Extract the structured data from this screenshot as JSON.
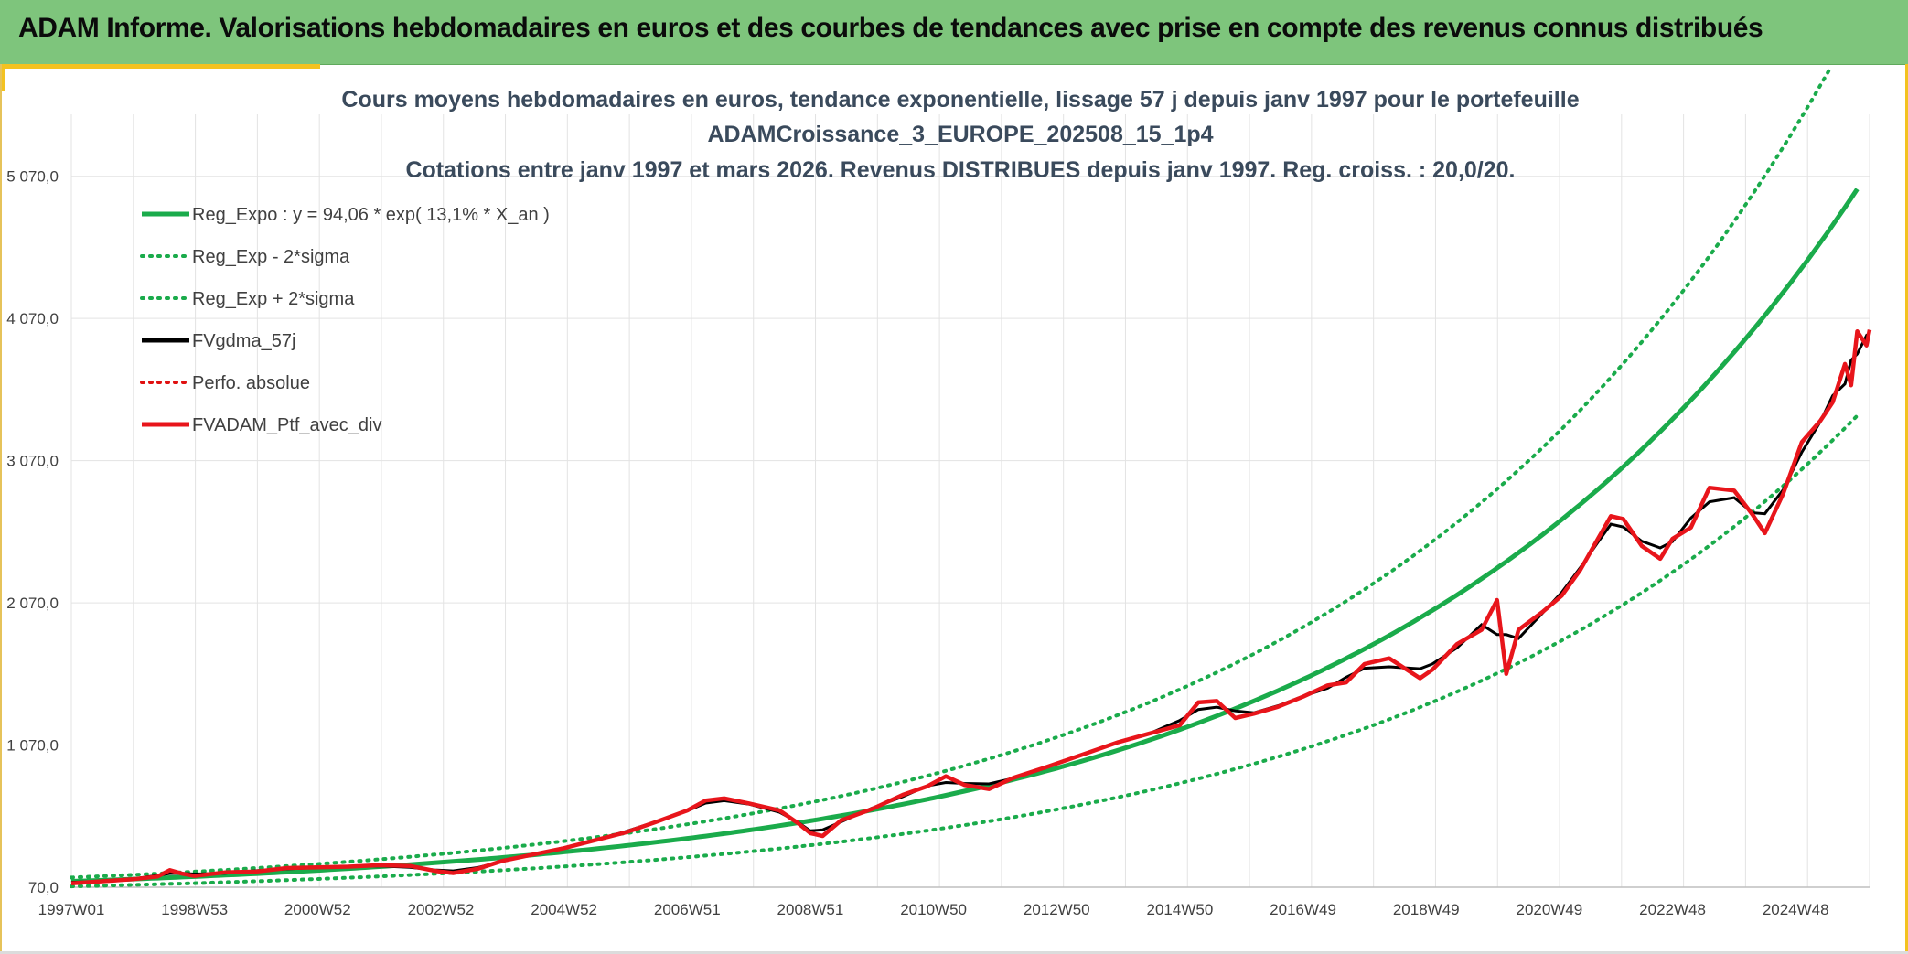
{
  "banner": {
    "title": "ADAM Informe. Valorisations hebdomadaires en euros et des courbes de tendances avec prise en compte des revenus connus distribués"
  },
  "colors": {
    "banner_bg": "#7ec57c",
    "accent": "#f3c220",
    "reg_green": "#1aab4b",
    "series_red": "#e8151b",
    "series_black": "#000000",
    "dotted_red": "#e01010",
    "grid": "#e3e3e3"
  },
  "chart_data": {
    "type": "line",
    "title_lines": [
      "Cours moyens hebdomadaires en euros, tendance exponentielle, lissage 57 j depuis janv 1997 pour le portefeuille",
      "ADAMCroissance_3_EUROPE_202508_15_1p4",
      "Cotations entre janv 1997 et mars 2026. Revenus DISTRIBUES depuis janv 1997. Reg. croiss. : 20,0/20."
    ],
    "x_tick_labels": [
      "1997W01",
      "1998W53",
      "2000W52",
      "2002W52",
      "2004W52",
      "2006W51",
      "2008W51",
      "2010W50",
      "2012W50",
      "2014W50",
      "2016W49",
      "2018W49",
      "2020W49",
      "2022W48",
      "2024W48"
    ],
    "y_tick_labels": [
      "70,0",
      "1 070,0",
      "2 070,0",
      "3 070,0",
      "4 070,0",
      "5 070,0"
    ],
    "y_ticks": [
      70,
      1070,
      2070,
      3070,
      4070,
      5070
    ],
    "x_range": [
      1997.0,
      2026.2
    ],
    "y_range": [
      70,
      5570
    ],
    "grid": true,
    "legend_placement": "top-left",
    "legend": [
      {
        "label": "Reg_Expo : y = 94,06 * exp( 13,1% *  X_an )",
        "style": "solid",
        "color": "#1aab4b"
      },
      {
        "label": "Reg_Exp - 2*sigma",
        "style": "dotted",
        "color": "#1aab4b"
      },
      {
        "label": "Reg_Exp + 2*sigma",
        "style": "dotted",
        "color": "#1aab4b"
      },
      {
        "label": "FVgdma_57j",
        "style": "solid",
        "color": "#000000"
      },
      {
        "label": "Perfo. absolue",
        "style": "dotted",
        "color": "#e01010"
      },
      {
        "label": "FVADAM_Ptf_avec_div",
        "style": "solid",
        "color": "#e8151b"
      }
    ],
    "regression": {
      "a": 94.06,
      "rate": 0.131,
      "lower_factor": 0.68,
      "upper_factor": 1.24
    },
    "series": [
      {
        "name": "FVADAM_Ptf_avec_div",
        "points": [
          [
            1997.0,
            97
          ],
          [
            1997.5,
            112
          ],
          [
            1998.0,
            126
          ],
          [
            1998.4,
            145
          ],
          [
            1998.6,
            190
          ],
          [
            1998.8,
            165
          ],
          [
            1999.0,
            150
          ],
          [
            1999.5,
            175
          ],
          [
            2000.0,
            180
          ],
          [
            2000.5,
            205
          ],
          [
            2001.0,
            210
          ],
          [
            2001.5,
            215
          ],
          [
            2002.0,
            225
          ],
          [
            2002.5,
            220
          ],
          [
            2002.9,
            185
          ],
          [
            2003.2,
            170
          ],
          [
            2003.6,
            200
          ],
          [
            2004.0,
            255
          ],
          [
            2004.5,
            300
          ],
          [
            2005.0,
            345
          ],
          [
            2005.5,
            400
          ],
          [
            2006.0,
            455
          ],
          [
            2006.5,
            530
          ],
          [
            2007.0,
            610
          ],
          [
            2007.3,
            680
          ],
          [
            2007.6,
            695
          ],
          [
            2008.0,
            660
          ],
          [
            2008.5,
            610
          ],
          [
            2008.8,
            520
          ],
          [
            2009.0,
            450
          ],
          [
            2009.2,
            430
          ],
          [
            2009.5,
            540
          ],
          [
            2010.0,
            620
          ],
          [
            2010.5,
            720
          ],
          [
            2010.9,
            780
          ],
          [
            2011.2,
            850
          ],
          [
            2011.5,
            790
          ],
          [
            2011.9,
            760
          ],
          [
            2012.3,
            840
          ],
          [
            2012.8,
            910
          ],
          [
            2013.2,
            970
          ],
          [
            2013.6,
            1030
          ],
          [
            2014.0,
            1090
          ],
          [
            2014.5,
            1150
          ],
          [
            2015.0,
            1210
          ],
          [
            2015.3,
            1370
          ],
          [
            2015.6,
            1380
          ],
          [
            2015.9,
            1260
          ],
          [
            2016.2,
            1290
          ],
          [
            2016.6,
            1340
          ],
          [
            2017.0,
            1410
          ],
          [
            2017.4,
            1490
          ],
          [
            2017.7,
            1510
          ],
          [
            2018.0,
            1640
          ],
          [
            2018.4,
            1680
          ],
          [
            2018.9,
            1540
          ],
          [
            2019.1,
            1600
          ],
          [
            2019.5,
            1780
          ],
          [
            2019.9,
            1880
          ],
          [
            2020.15,
            2090
          ],
          [
            2020.3,
            1570
          ],
          [
            2020.5,
            1880
          ],
          [
            2020.9,
            2010
          ],
          [
            2021.2,
            2120
          ],
          [
            2021.5,
            2300
          ],
          [
            2021.8,
            2530
          ],
          [
            2022.0,
            2680
          ],
          [
            2022.2,
            2660
          ],
          [
            2022.5,
            2470
          ],
          [
            2022.8,
            2380
          ],
          [
            2023.0,
            2520
          ],
          [
            2023.3,
            2600
          ],
          [
            2023.6,
            2880
          ],
          [
            2024.0,
            2860
          ],
          [
            2024.3,
            2690
          ],
          [
            2024.5,
            2560
          ],
          [
            2024.8,
            2840
          ],
          [
            2025.1,
            3200
          ],
          [
            2025.4,
            3350
          ],
          [
            2025.6,
            3480
          ],
          [
            2025.8,
            3750
          ],
          [
            2025.9,
            3600
          ],
          [
            2026.0,
            3980
          ],
          [
            2026.15,
            3880
          ],
          [
            2026.2,
            3990
          ]
        ]
      }
    ]
  }
}
